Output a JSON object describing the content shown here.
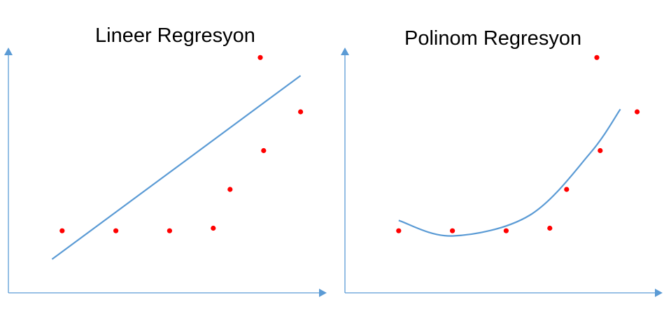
{
  "colors": {
    "axis": "#5b9bd5",
    "fit": "#5b9bd5",
    "points": "#ff0000"
  },
  "chart_data": [
    {
      "type": "scatter",
      "title": "Lineer Regresyon",
      "xlabel": "",
      "ylabel": "",
      "xlim": [
        0,
        10
      ],
      "ylim": [
        0,
        10
      ],
      "grid": false,
      "points": [
        {
          "x": 1.6,
          "y": 2.4
        },
        {
          "x": 3.2,
          "y": 2.4
        },
        {
          "x": 4.8,
          "y": 2.4
        },
        {
          "x": 6.1,
          "y": 2.5
        },
        {
          "x": 6.6,
          "y": 4.0
        },
        {
          "x": 7.6,
          "y": 5.5
        },
        {
          "x": 7.5,
          "y": 9.1
        },
        {
          "x": 8.7,
          "y": 7.0
        }
      ],
      "fit": {
        "kind": "linear",
        "points": [
          [
            1.3,
            1.3
          ],
          [
            8.7,
            8.4
          ]
        ]
      }
    },
    {
      "type": "scatter",
      "title": "Polinom Regresyon",
      "xlabel": "",
      "ylabel": "",
      "xlim": [
        0,
        10
      ],
      "ylim": [
        0,
        10
      ],
      "grid": false,
      "points": [
        {
          "x": 1.6,
          "y": 2.4
        },
        {
          "x": 3.2,
          "y": 2.4
        },
        {
          "x": 4.8,
          "y": 2.4
        },
        {
          "x": 6.1,
          "y": 2.5
        },
        {
          "x": 6.6,
          "y": 4.0
        },
        {
          "x": 7.6,
          "y": 5.5
        },
        {
          "x": 7.5,
          "y": 9.1
        },
        {
          "x": 8.7,
          "y": 7.0
        }
      ],
      "fit": {
        "kind": "polynomial",
        "points": [
          [
            1.6,
            2.8
          ],
          [
            3.2,
            2.2
          ],
          [
            5.5,
            3.0
          ],
          [
            7.3,
            5.4
          ],
          [
            8.2,
            7.1
          ]
        ]
      }
    }
  ]
}
